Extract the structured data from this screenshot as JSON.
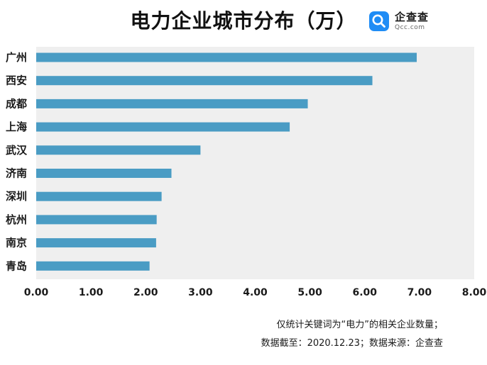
{
  "title": "电力企业城市分布（万）",
  "brand": {
    "name": "企查查",
    "domain": "Qcc.com",
    "icon": "qcc-logo-icon",
    "color": "#1f8cf5"
  },
  "footnote": {
    "line1": "仅统计关键词为“电力”的相关企业数量；",
    "line2": "数据截至：2020.12.23；数据来源：企查查"
  },
  "chart_data": {
    "type": "bar",
    "orientation": "horizontal",
    "title": "电力企业城市分布（万）",
    "categories": [
      "广州",
      "西安",
      "成都",
      "上海",
      "武汉",
      "济南",
      "深圳",
      "杭州",
      "南京",
      "青岛"
    ],
    "values": [
      6.95,
      6.14,
      4.96,
      4.63,
      3.0,
      2.47,
      2.29,
      2.2,
      2.19,
      2.07
    ],
    "xlim": [
      0,
      8
    ],
    "xticks": [
      "0.00",
      "1.00",
      "2.00",
      "3.00",
      "4.00",
      "5.00",
      "6.00",
      "7.00",
      "8.00"
    ],
    "bar_color": "#4a9cc4",
    "background_color": "#efefef",
    "grid": false,
    "legend": "none"
  }
}
